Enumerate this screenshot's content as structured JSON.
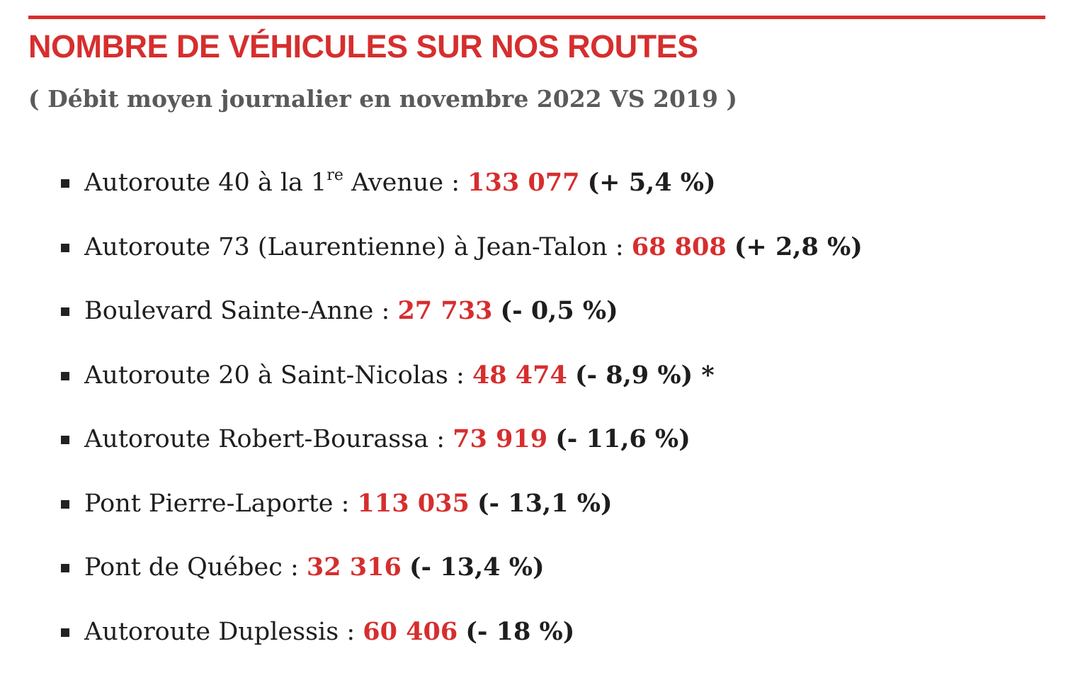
{
  "title": "NOMBRE DE VÉHICULES SUR NOS ROUTES",
  "subtitle": "( Débit moyen journalier en novembre 2022 VS 2019 )",
  "colors": {
    "accent": "#d62e2e",
    "subtitle": "#5a5a5a",
    "text": "#1e1e1e"
  },
  "items": [
    {
      "label": "Autoroute 40 à la 1",
      "label_sup": "re",
      "label_after": " Avenue",
      "separator": " : ",
      "value": "133 077",
      "change": "(+ 5,4 %)"
    },
    {
      "label": "Autoroute 73 (Laurentienne) à Jean-Talon",
      "separator": " : ",
      "value": "68 808",
      "change": "(+ 2,8 %)"
    },
    {
      "label": "Boulevard Sainte-Anne",
      "separator": " : ",
      "value": "27 733",
      "change": "(- 0,5 %)"
    },
    {
      "label": "Autoroute 20 à Saint-Nicolas",
      "separator": " : ",
      "value": "48 474",
      "change": "(- 8,9 %) *"
    },
    {
      "label": "Autoroute Robert-Bourassa",
      "separator": " : ",
      "value": "73 919",
      "change": "(- 11,6 %)"
    },
    {
      "label": "Pont Pierre-Laporte",
      "separator": " : ",
      "value": "113 035",
      "change": "(- 13,1 %)"
    },
    {
      "label": "Pont de Québec",
      "separator": " : ",
      "value": "32 316",
      "change": "(- 13,4 %)"
    },
    {
      "label": "Autoroute Duplessis",
      "separator": " : ",
      "value": "60 406",
      "change": "(- 18 %)"
    }
  ]
}
